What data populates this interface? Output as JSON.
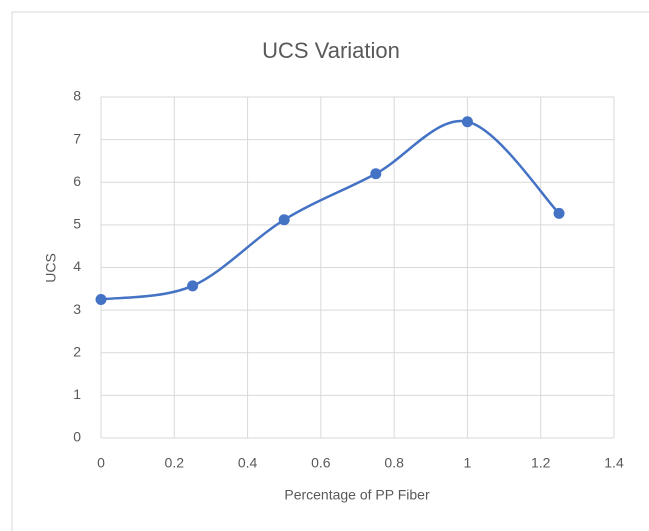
{
  "chart_data": {
    "type": "scatter",
    "smooth": true,
    "title": "UCS Variation",
    "x_label": "Percentage of PP Fiber",
    "y_label": "UCS",
    "series": [
      {
        "name": "UCS",
        "color": "#4472c4",
        "x": [
          0,
          0.25,
          0.5,
          0.75,
          1,
          1.25
        ],
        "values": [
          3.25,
          3.57,
          5.12,
          6.2,
          7.42,
          5.27
        ]
      }
    ],
    "xlim": [
      0,
      1.4
    ],
    "xticks": [
      0,
      0.2,
      0.4,
      0.6,
      0.8,
      1,
      1.2,
      1.4
    ],
    "ylim": [
      0,
      8
    ],
    "yticks": [
      0,
      1,
      2,
      3,
      4,
      5,
      6,
      7,
      8
    ],
    "grid": true
  }
}
